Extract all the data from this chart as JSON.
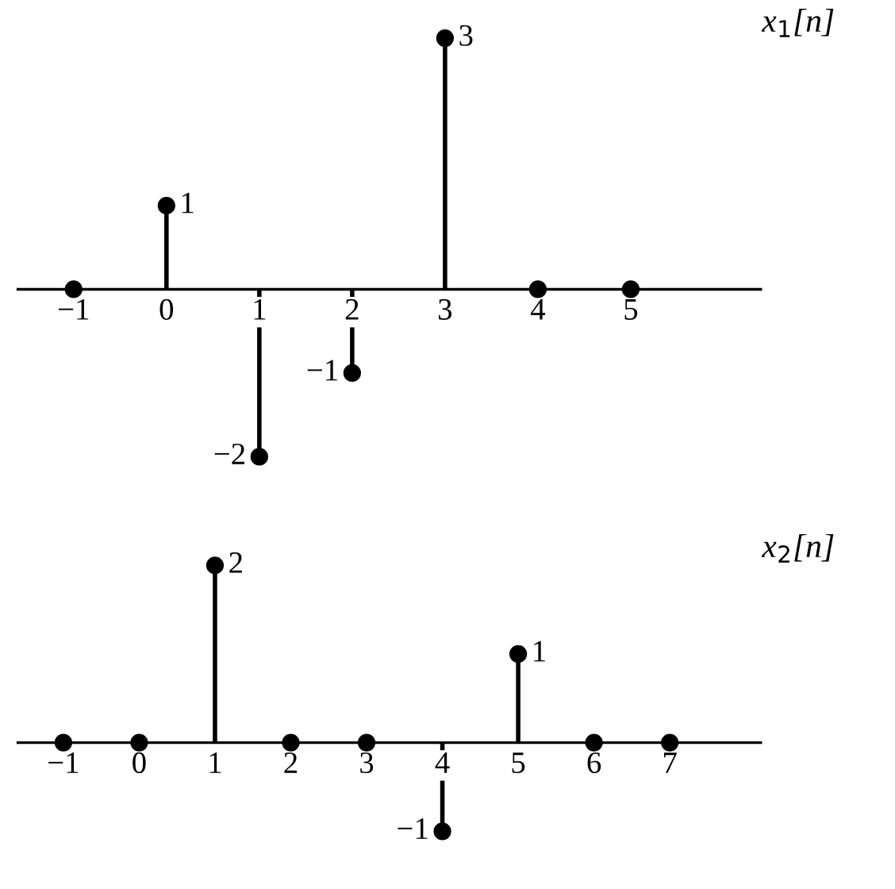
{
  "chart_data": [
    {
      "type": "lollipop",
      "title": "x$_{1}$[n]",
      "x": [
        -1,
        0,
        1,
        2,
        3,
        4,
        5
      ],
      "values": [
        0,
        1,
        -2,
        -1,
        3,
        0,
        0
      ],
      "value_labels": [
        null,
        "1",
        "−2",
        "−1",
        "3",
        null,
        null
      ],
      "color": "#000000",
      "marker": "circle",
      "xlim": [
        -1.6,
        6.4
      ],
      "xticks": [
        {
          "value": -1,
          "label": "−1"
        },
        0,
        1,
        2,
        3,
        4,
        5
      ],
      "tick_labels": "x",
      "grid": false
    },
    {
      "type": "lollipop",
      "title": "x$_{2}$[n]",
      "x": [
        -1,
        0,
        1,
        2,
        3,
        4,
        5,
        6,
        7
      ],
      "values": [
        0,
        0,
        2,
        0,
        0,
        -1,
        1,
        0,
        0
      ],
      "value_labels": [
        null,
        null,
        "2",
        null,
        null,
        "−1",
        "1",
        null,
        null
      ],
      "color": "#000000",
      "marker": "circle",
      "xlim": [
        -1.6,
        8.2
      ],
      "xticks": [
        {
          "value": -1,
          "label": "−1"
        },
        0,
        1,
        2,
        3,
        4,
        5,
        6,
        7
      ],
      "tick_labels": "x",
      "grid": false
    }
  ]
}
